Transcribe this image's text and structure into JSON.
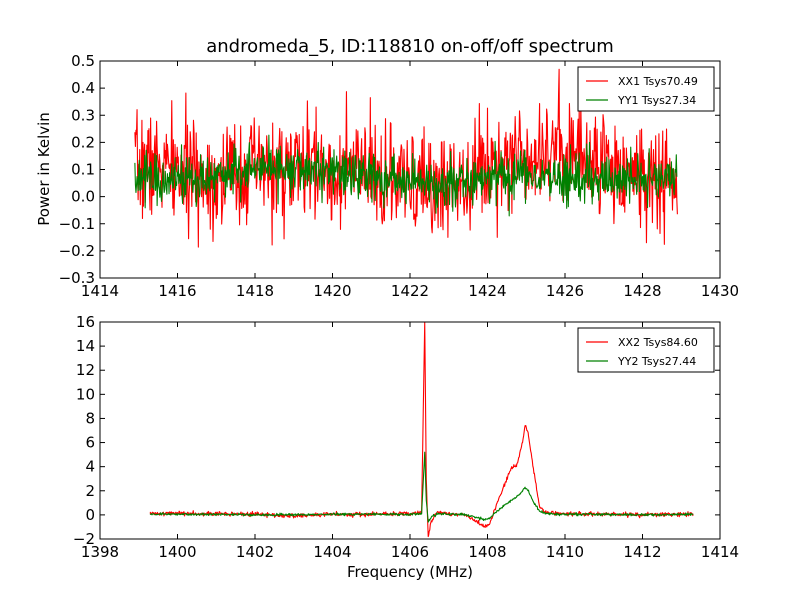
{
  "chart_data": [
    {
      "type": "line",
      "title": "andromeda_5, ID:118810 on-off/off spectrum",
      "xlabel": "",
      "ylabel": "Power in Kelvin",
      "xlim": [
        1414,
        1430
      ],
      "ylim": [
        -0.3,
        0.5
      ],
      "xticks": [
        1414,
        1416,
        1418,
        1420,
        1422,
        1424,
        1426,
        1428,
        1430
      ],
      "yticks": [
        -0.3,
        -0.2,
        -0.1,
        0.0,
        0.1,
        0.2,
        0.3,
        0.4,
        0.5
      ],
      "xtick_labels": [
        "1414",
        "1416",
        "1418",
        "1420",
        "1422",
        "1424",
        "1426",
        "1428",
        "1430"
      ],
      "ytick_labels": [
        "−0.3",
        "−0.2",
        "−0.1",
        "0.0",
        "0.1",
        "0.2",
        "0.3",
        "0.4",
        "0.5"
      ],
      "grid": false,
      "legend_position": "top-right",
      "x_range": [
        1414.9,
        1428.9
      ],
      "series": [
        {
          "name": "XX1 Tsys70.49",
          "color": "#ff0000",
          "x": [
            1414.9,
            1415.5,
            1416.0,
            1416.5,
            1417.0,
            1417.5,
            1418.0,
            1418.5,
            1419.0,
            1419.5,
            1420.0,
            1420.5,
            1421.0,
            1421.5,
            1422.0,
            1422.5,
            1423.0,
            1423.5,
            1424.0,
            1424.5,
            1425.0,
            1425.5,
            1426.0,
            1426.5,
            1427.0,
            1427.5,
            1428.0,
            1428.5,
            1428.9
          ],
          "values": [
            0.1,
            0.12,
            0.09,
            0.08,
            0.07,
            0.09,
            0.1,
            0.09,
            0.1,
            0.11,
            0.08,
            0.1,
            0.07,
            0.05,
            0.04,
            0.03,
            0.05,
            0.08,
            0.12,
            0.15,
            0.16,
            0.18,
            0.17,
            0.15,
            0.12,
            0.1,
            0.08,
            0.06,
            0.04
          ]
        },
        {
          "name": "YY1 Tsys27.34",
          "color": "#008000",
          "x": [
            1414.9,
            1415.5,
            1416.0,
            1416.5,
            1417.0,
            1417.5,
            1418.0,
            1418.5,
            1419.0,
            1419.5,
            1420.0,
            1420.5,
            1421.0,
            1421.5,
            1422.0,
            1422.5,
            1423.0,
            1423.5,
            1424.0,
            1424.5,
            1425.0,
            1425.5,
            1426.0,
            1426.5,
            1427.0,
            1427.5,
            1428.0,
            1428.5,
            1428.9
          ],
          "values": [
            0.06,
            0.07,
            0.06,
            0.07,
            0.08,
            0.09,
            0.1,
            0.1,
            0.1,
            0.1,
            0.09,
            0.08,
            0.07,
            0.06,
            0.06,
            0.05,
            0.05,
            0.06,
            0.07,
            0.08,
            0.08,
            0.07,
            0.07,
            0.06,
            0.06,
            0.06,
            0.07,
            0.07,
            0.07
          ]
        }
      ]
    },
    {
      "type": "line",
      "title": "",
      "xlabel": "Frequency (MHz)",
      "ylabel": "",
      "xlim": [
        1398,
        1414
      ],
      "ylim": [
        -2,
        16
      ],
      "xticks": [
        1398,
        1400,
        1402,
        1404,
        1406,
        1408,
        1410,
        1412,
        1414
      ],
      "yticks": [
        -2,
        0,
        2,
        4,
        6,
        8,
        10,
        12,
        14,
        16
      ],
      "xtick_labels": [
        "1398",
        "1400",
        "1402",
        "1404",
        "1406",
        "1408",
        "1410",
        "1412",
        "1414"
      ],
      "ytick_labels": [
        "−2",
        "0",
        "2",
        "4",
        "6",
        "8",
        "10",
        "12",
        "14",
        "16"
      ],
      "grid": false,
      "legend_position": "top-right",
      "series": [
        {
          "name": "XX2 Tsys84.60",
          "color": "#ff0000",
          "x": [
            1399.3,
            1400.0,
            1401.0,
            1402.0,
            1403.0,
            1404.0,
            1405.0,
            1406.0,
            1406.3,
            1406.38,
            1406.42,
            1406.47,
            1406.55,
            1406.7,
            1407.0,
            1407.4,
            1407.7,
            1407.9,
            1408.05,
            1408.2,
            1408.4,
            1408.6,
            1408.75,
            1408.9,
            1408.97,
            1409.05,
            1409.2,
            1409.35,
            1409.5,
            1410.0,
            1411.0,
            1412.0,
            1413.0,
            1413.3
          ],
          "values": [
            0.1,
            0.15,
            0.1,
            0.05,
            -0.1,
            0.05,
            0.05,
            0.1,
            0.3,
            16.0,
            3.0,
            -1.8,
            -0.5,
            0.2,
            0.1,
            0.0,
            -0.5,
            -1.0,
            -0.8,
            0.5,
            2.2,
            3.8,
            4.1,
            6.0,
            7.4,
            6.8,
            3.5,
            0.6,
            0.2,
            0.1,
            0.05,
            0.0,
            0.05,
            0.1
          ]
        },
        {
          "name": "YY2 Tsys27.44",
          "color": "#008000",
          "x": [
            1399.3,
            1400.0,
            1401.0,
            1402.0,
            1403.0,
            1404.0,
            1405.0,
            1406.0,
            1406.3,
            1406.38,
            1406.42,
            1406.47,
            1406.55,
            1406.7,
            1407.0,
            1407.4,
            1407.7,
            1407.9,
            1408.05,
            1408.2,
            1408.4,
            1408.6,
            1408.75,
            1408.9,
            1408.97,
            1409.05,
            1409.2,
            1409.35,
            1409.5,
            1410.0,
            1411.0,
            1412.0,
            1413.0,
            1413.3
          ],
          "values": [
            0.05,
            0.05,
            0.05,
            0.0,
            0.0,
            0.05,
            0.05,
            0.05,
            0.1,
            5.2,
            1.2,
            -0.6,
            -0.2,
            0.1,
            0.05,
            0.0,
            -0.2,
            -0.4,
            -0.3,
            0.2,
            0.7,
            1.2,
            1.5,
            2.0,
            2.3,
            2.0,
            1.0,
            0.3,
            0.1,
            0.05,
            0.05,
            0.0,
            0.05,
            0.05
          ]
        }
      ]
    }
  ]
}
